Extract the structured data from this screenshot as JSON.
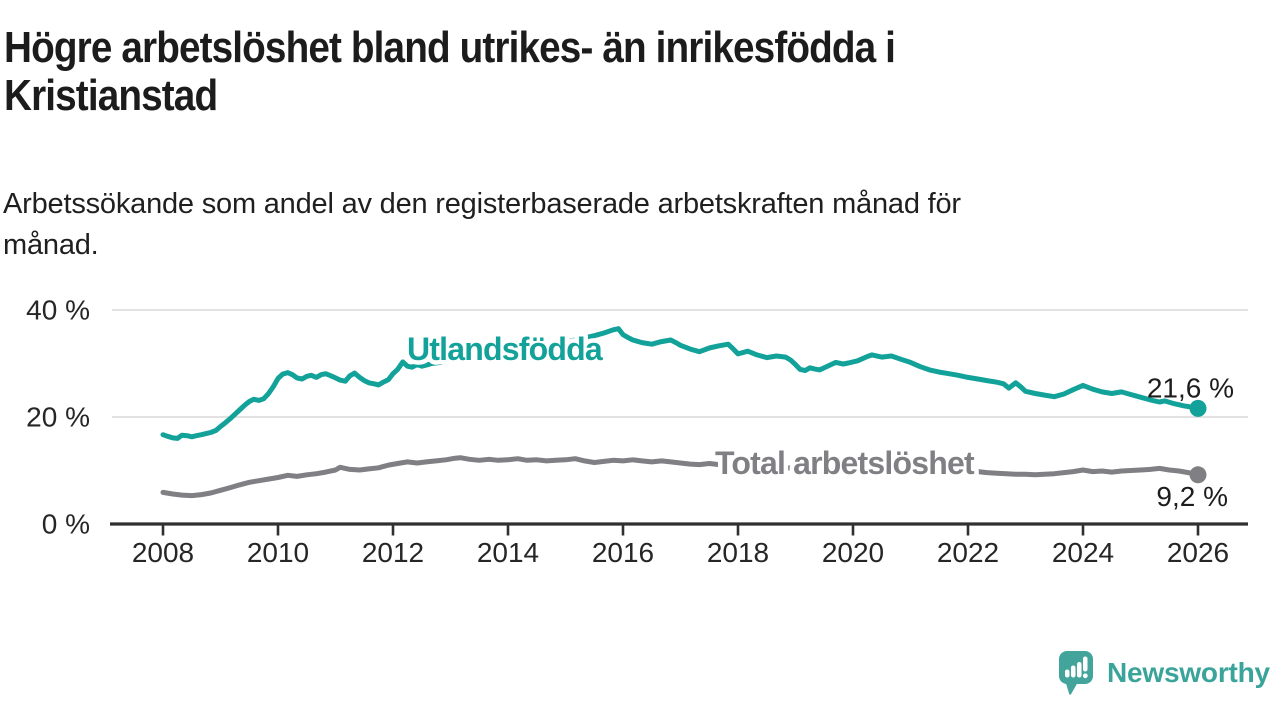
{
  "header": {
    "title_lines": [
      "Högre arbetslöshet bland utrikes- än inrikesfödda i",
      "Kristianstad"
    ],
    "subtitle_lines": [
      "Arbetssökande som andel av den registerbaserade arbetskraften månad för",
      "månad."
    ]
  },
  "footer": {
    "brand": "Newsworthy",
    "brand_icon": "speech-bubble-bar-chart-exclamation"
  },
  "colors": {
    "foreign_born_line": "#13a299",
    "total_line": "#7f7f84",
    "brand_teal": "#43a49b",
    "grid": "#d8d8d8",
    "axis": "#303030",
    "tick_text": "#262626",
    "annotation_text": "#1d1d1d"
  },
  "chart_data": {
    "type": "line",
    "title": "Högre arbetslöshet bland utrikes- än inrikesfödda i Kristianstad",
    "subtitle": "Arbetssökande som andel av den registerbaserade arbetskraften månad för månad.",
    "xlabel": "",
    "ylabel": "",
    "xlim": [
      2008,
      2026.8
    ],
    "ylim": [
      0,
      42
    ],
    "grid": "horizontal",
    "legend_position": "inline-labels-on-lines",
    "x_ticks": [
      2008,
      2010,
      2012,
      2014,
      2016,
      2018,
      2020,
      2022,
      2024,
      2026
    ],
    "y_ticks": [
      {
        "value": 0,
        "label": "0 %"
      },
      {
        "value": 20,
        "label": "20 %"
      },
      {
        "value": 40,
        "label": "40 %"
      }
    ],
    "series": [
      {
        "name": "Utlandsfödda",
        "color": "#13a299",
        "end_value": 21.6,
        "end_label": "21,6 %",
        "points": [
          [
            2008.0,
            16.7
          ],
          [
            2008.08,
            16.4
          ],
          [
            2008.17,
            16.1
          ],
          [
            2008.25,
            16.0
          ],
          [
            2008.33,
            16.6
          ],
          [
            2008.42,
            16.5
          ],
          [
            2008.5,
            16.3
          ],
          [
            2008.58,
            16.5
          ],
          [
            2008.67,
            16.7
          ],
          [
            2008.75,
            16.9
          ],
          [
            2008.83,
            17.1
          ],
          [
            2008.92,
            17.5
          ],
          [
            2009.0,
            18.2
          ],
          [
            2009.08,
            18.9
          ],
          [
            2009.17,
            19.7
          ],
          [
            2009.25,
            20.5
          ],
          [
            2009.33,
            21.3
          ],
          [
            2009.42,
            22.2
          ],
          [
            2009.5,
            22.9
          ],
          [
            2009.58,
            23.3
          ],
          [
            2009.67,
            23.1
          ],
          [
            2009.75,
            23.4
          ],
          [
            2009.83,
            24.3
          ],
          [
            2009.92,
            25.7
          ],
          [
            2010.0,
            27.2
          ],
          [
            2010.08,
            28.0
          ],
          [
            2010.17,
            28.3
          ],
          [
            2010.25,
            27.9
          ],
          [
            2010.33,
            27.3
          ],
          [
            2010.42,
            27.1
          ],
          [
            2010.5,
            27.6
          ],
          [
            2010.58,
            27.8
          ],
          [
            2010.67,
            27.4
          ],
          [
            2010.75,
            27.9
          ],
          [
            2010.83,
            28.1
          ],
          [
            2010.92,
            27.7
          ],
          [
            2011.0,
            27.3
          ],
          [
            2011.08,
            26.9
          ],
          [
            2011.17,
            26.7
          ],
          [
            2011.25,
            27.7
          ],
          [
            2011.33,
            28.2
          ],
          [
            2011.42,
            27.4
          ],
          [
            2011.5,
            26.8
          ],
          [
            2011.58,
            26.4
          ],
          [
            2011.67,
            26.2
          ],
          [
            2011.75,
            26.0
          ],
          [
            2011.83,
            26.5
          ],
          [
            2011.92,
            27.0
          ],
          [
            2012.0,
            28.1
          ],
          [
            2012.08,
            28.9
          ],
          [
            2012.17,
            30.3
          ],
          [
            2012.25,
            29.5
          ],
          [
            2012.33,
            29.3
          ],
          [
            2012.42,
            29.8
          ],
          [
            2012.5,
            29.5
          ],
          [
            2012.58,
            29.7
          ],
          [
            2012.67,
            30.0
          ],
          [
            2012.83,
            30.2
          ],
          [
            2013.0,
            30.5
          ],
          [
            2013.25,
            30.9
          ],
          [
            2013.5,
            31.2
          ],
          [
            2013.75,
            31.6
          ],
          [
            2014.0,
            32.0
          ],
          [
            2014.25,
            32.4
          ],
          [
            2014.5,
            32.9
          ],
          [
            2014.75,
            33.4
          ],
          [
            2015.0,
            34.0
          ],
          [
            2015.25,
            34.6
          ],
          [
            2015.5,
            35.2
          ],
          [
            2015.67,
            35.7
          ],
          [
            2015.83,
            36.3
          ],
          [
            2015.92,
            36.5
          ],
          [
            2016.0,
            35.4
          ],
          [
            2016.08,
            34.9
          ],
          [
            2016.17,
            34.4
          ],
          [
            2016.33,
            33.9
          ],
          [
            2016.5,
            33.6
          ],
          [
            2016.67,
            34.1
          ],
          [
            2016.83,
            34.4
          ],
          [
            2016.92,
            33.9
          ],
          [
            2017.0,
            33.4
          ],
          [
            2017.17,
            32.7
          ],
          [
            2017.33,
            32.2
          ],
          [
            2017.5,
            32.9
          ],
          [
            2017.67,
            33.3
          ],
          [
            2017.83,
            33.6
          ],
          [
            2017.92,
            32.7
          ],
          [
            2018.0,
            31.8
          ],
          [
            2018.17,
            32.3
          ],
          [
            2018.33,
            31.6
          ],
          [
            2018.5,
            31.1
          ],
          [
            2018.67,
            31.4
          ],
          [
            2018.83,
            31.2
          ],
          [
            2018.92,
            30.6
          ],
          [
            2019.0,
            29.8
          ],
          [
            2019.08,
            28.9
          ],
          [
            2019.17,
            28.7
          ],
          [
            2019.25,
            29.2
          ],
          [
            2019.33,
            29.0
          ],
          [
            2019.42,
            28.8
          ],
          [
            2019.58,
            29.6
          ],
          [
            2019.7,
            30.2
          ],
          [
            2019.83,
            29.9
          ],
          [
            2019.92,
            30.1
          ],
          [
            2020.08,
            30.5
          ],
          [
            2020.25,
            31.3
          ],
          [
            2020.33,
            31.6
          ],
          [
            2020.5,
            31.2
          ],
          [
            2020.67,
            31.4
          ],
          [
            2020.83,
            30.8
          ],
          [
            2021.0,
            30.2
          ],
          [
            2021.17,
            29.4
          ],
          [
            2021.33,
            28.8
          ],
          [
            2021.5,
            28.4
          ],
          [
            2021.67,
            28.1
          ],
          [
            2021.83,
            27.8
          ],
          [
            2022.0,
            27.4
          ],
          [
            2022.17,
            27.1
          ],
          [
            2022.33,
            26.8
          ],
          [
            2022.5,
            26.5
          ],
          [
            2022.62,
            26.2
          ],
          [
            2022.71,
            25.4
          ],
          [
            2022.83,
            26.4
          ],
          [
            2022.92,
            25.6
          ],
          [
            2023.0,
            24.8
          ],
          [
            2023.17,
            24.4
          ],
          [
            2023.33,
            24.1
          ],
          [
            2023.5,
            23.8
          ],
          [
            2023.67,
            24.3
          ],
          [
            2023.83,
            25.1
          ],
          [
            2024.0,
            25.9
          ],
          [
            2024.17,
            25.2
          ],
          [
            2024.33,
            24.7
          ],
          [
            2024.5,
            24.4
          ],
          [
            2024.67,
            24.7
          ],
          [
            2024.83,
            24.2
          ],
          [
            2025.0,
            23.7
          ],
          [
            2025.17,
            23.2
          ],
          [
            2025.33,
            22.8
          ],
          [
            2025.42,
            23.0
          ],
          [
            2025.58,
            22.5
          ],
          [
            2025.75,
            22.1
          ],
          [
            2025.92,
            21.8
          ],
          [
            2026.0,
            21.6
          ]
        ]
      },
      {
        "name": "Total arbetslöshet",
        "color": "#7f7f84",
        "end_value": 9.2,
        "end_label": "9,2 %",
        "points": [
          [
            2008.0,
            5.9
          ],
          [
            2008.17,
            5.6
          ],
          [
            2008.33,
            5.4
          ],
          [
            2008.5,
            5.3
          ],
          [
            2008.67,
            5.5
          ],
          [
            2008.83,
            5.8
          ],
          [
            2009.0,
            6.3
          ],
          [
            2009.17,
            6.8
          ],
          [
            2009.33,
            7.3
          ],
          [
            2009.5,
            7.8
          ],
          [
            2009.67,
            8.1
          ],
          [
            2009.83,
            8.4
          ],
          [
            2010.0,
            8.7
          ],
          [
            2010.17,
            9.1
          ],
          [
            2010.33,
            8.9
          ],
          [
            2010.5,
            9.2
          ],
          [
            2010.67,
            9.4
          ],
          [
            2010.83,
            9.7
          ],
          [
            2011.0,
            10.1
          ],
          [
            2011.08,
            10.6
          ],
          [
            2011.25,
            10.2
          ],
          [
            2011.42,
            10.1
          ],
          [
            2011.58,
            10.3
          ],
          [
            2011.75,
            10.5
          ],
          [
            2011.92,
            11.0
          ],
          [
            2012.08,
            11.3
          ],
          [
            2012.25,
            11.6
          ],
          [
            2012.42,
            11.4
          ],
          [
            2012.58,
            11.6
          ],
          [
            2012.75,
            11.8
          ],
          [
            2012.92,
            12.0
          ],
          [
            2013.08,
            12.3
          ],
          [
            2013.17,
            12.4
          ],
          [
            2013.33,
            12.1
          ],
          [
            2013.5,
            11.9
          ],
          [
            2013.67,
            12.1
          ],
          [
            2013.83,
            11.9
          ],
          [
            2014.0,
            12.0
          ],
          [
            2014.17,
            12.2
          ],
          [
            2014.33,
            11.9
          ],
          [
            2014.5,
            12.0
          ],
          [
            2014.67,
            11.8
          ],
          [
            2014.83,
            11.9
          ],
          [
            2015.0,
            12.0
          ],
          [
            2015.17,
            12.2
          ],
          [
            2015.33,
            11.8
          ],
          [
            2015.5,
            11.5
          ],
          [
            2015.67,
            11.7
          ],
          [
            2015.83,
            11.9
          ],
          [
            2016.0,
            11.8
          ],
          [
            2016.17,
            12.0
          ],
          [
            2016.33,
            11.8
          ],
          [
            2016.5,
            11.6
          ],
          [
            2016.67,
            11.8
          ],
          [
            2016.83,
            11.6
          ],
          [
            2017.0,
            11.4
          ],
          [
            2017.17,
            11.2
          ],
          [
            2017.33,
            11.1
          ],
          [
            2017.5,
            11.3
          ],
          [
            2017.67,
            11.1
          ],
          [
            2017.83,
            11.0
          ],
          [
            2018.0,
            10.9
          ],
          [
            2018.17,
            11.0
          ],
          [
            2018.33,
            10.8
          ],
          [
            2018.5,
            10.6
          ],
          [
            2018.67,
            10.7
          ],
          [
            2018.83,
            10.5
          ],
          [
            2019.0,
            10.4
          ],
          [
            2019.17,
            10.2
          ],
          [
            2019.33,
            10.4
          ],
          [
            2019.5,
            10.3
          ],
          [
            2019.67,
            10.4
          ],
          [
            2019.83,
            10.3
          ],
          [
            2020.0,
            10.5
          ],
          [
            2020.17,
            10.7
          ],
          [
            2020.33,
            10.9
          ],
          [
            2020.5,
            11.1
          ],
          [
            2020.67,
            11.0
          ],
          [
            2020.83,
            10.8
          ],
          [
            2021.0,
            10.7
          ],
          [
            2021.17,
            10.5
          ],
          [
            2021.33,
            10.3
          ],
          [
            2021.5,
            10.2
          ],
          [
            2021.67,
            10.1
          ],
          [
            2021.83,
            10.0
          ],
          [
            2022.0,
            9.9
          ],
          [
            2022.17,
            9.8
          ],
          [
            2022.33,
            9.6
          ],
          [
            2022.5,
            9.5
          ],
          [
            2022.67,
            9.4
          ],
          [
            2022.83,
            9.3
          ],
          [
            2023.0,
            9.3
          ],
          [
            2023.17,
            9.2
          ],
          [
            2023.33,
            9.3
          ],
          [
            2023.5,
            9.4
          ],
          [
            2023.67,
            9.6
          ],
          [
            2023.83,
            9.8
          ],
          [
            2024.0,
            10.1
          ],
          [
            2024.17,
            9.8
          ],
          [
            2024.33,
            9.9
          ],
          [
            2024.5,
            9.7
          ],
          [
            2024.67,
            9.9
          ],
          [
            2024.83,
            10.0
          ],
          [
            2025.0,
            10.1
          ],
          [
            2025.17,
            10.2
          ],
          [
            2025.33,
            10.4
          ],
          [
            2025.5,
            10.1
          ],
          [
            2025.67,
            9.9
          ],
          [
            2025.83,
            9.6
          ],
          [
            2026.0,
            9.2
          ]
        ]
      }
    ]
  }
}
